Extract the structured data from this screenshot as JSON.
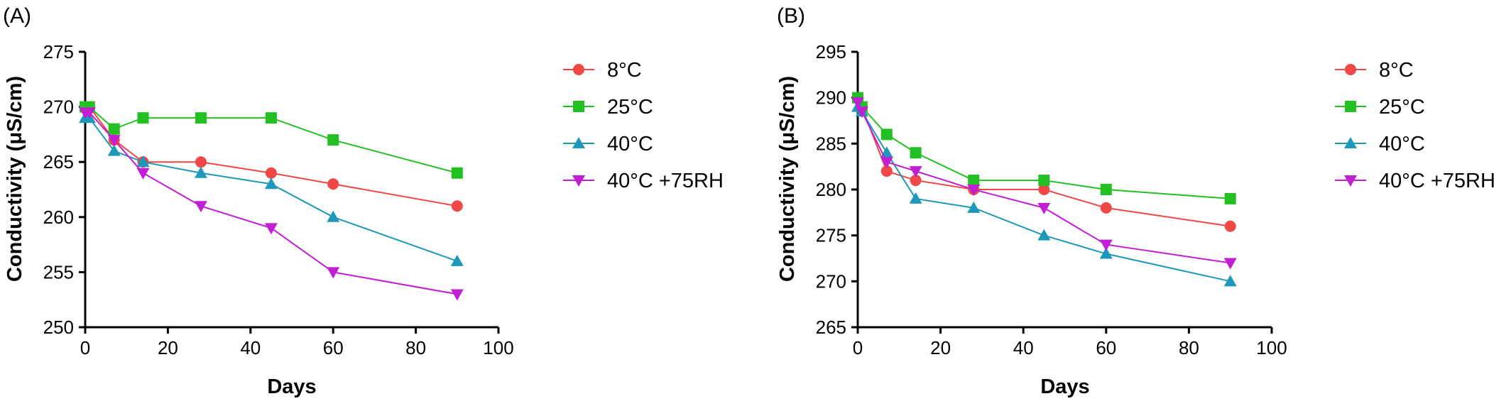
{
  "chart_data": [
    {
      "panel": "(A)",
      "type": "line",
      "xlabel": "Days",
      "ylabel": "Conductivity (μS/cm)",
      "xlim": [
        0,
        100
      ],
      "ylim": [
        250,
        275
      ],
      "xticks": [
        "0",
        "20",
        "40",
        "60",
        "80",
        "100"
      ],
      "yticks": [
        "250",
        "255",
        "260",
        "265",
        "270",
        "275"
      ],
      "legend_position": "right",
      "grid": false,
      "series": [
        {
          "name": "8°C",
          "color": "#f04747",
          "marker": "circle",
          "x": [
            0,
            1,
            7,
            14,
            28,
            45,
            60,
            90
          ],
          "y": [
            270,
            270,
            267,
            265,
            265,
            264,
            263,
            261
          ]
        },
        {
          "name": "25°C",
          "color": "#22c022",
          "marker": "square",
          "x": [
            0,
            1,
            7,
            14,
            28,
            45,
            60,
            90
          ],
          "y": [
            270,
            270,
            268,
            269,
            269,
            269,
            267,
            264
          ]
        },
        {
          "name": "40°C",
          "color": "#1e98b8",
          "marker": "triangle-up",
          "x": [
            0,
            1,
            7,
            14,
            28,
            45,
            60,
            90
          ],
          "y": [
            269,
            269,
            266,
            265,
            264,
            263,
            260,
            256
          ]
        },
        {
          "name": "40°C +75RH",
          "color": "#c21ed4",
          "marker": "triangle-down",
          "x": [
            0,
            1,
            7,
            14,
            28,
            45,
            60,
            90
          ],
          "y": [
            269.5,
            269.5,
            267,
            264,
            261,
            259,
            255,
            253
          ]
        }
      ]
    },
    {
      "panel": "(B)",
      "type": "line",
      "xlabel": "Days",
      "ylabel": "Conductivity (μS/cm)",
      "xlim": [
        0,
        100
      ],
      "ylim": [
        265,
        295
      ],
      "xticks": [
        "0",
        "20",
        "40",
        "60",
        "80",
        "100"
      ],
      "yticks": [
        "265",
        "270",
        "275",
        "280",
        "285",
        "290",
        "295"
      ],
      "legend_position": "right",
      "grid": false,
      "series": [
        {
          "name": "8°C",
          "color": "#f04747",
          "marker": "circle",
          "x": [
            0,
            1,
            7,
            14,
            28,
            45,
            60,
            90
          ],
          "y": [
            290,
            289,
            282,
            281,
            280,
            280,
            278,
            276
          ]
        },
        {
          "name": "25°C",
          "color": "#22c022",
          "marker": "square",
          "x": [
            0,
            1,
            7,
            14,
            28,
            45,
            60,
            90
          ],
          "y": [
            290,
            289,
            286,
            284,
            281,
            281,
            280,
            279
          ]
        },
        {
          "name": "40°C",
          "color": "#1e98b8",
          "marker": "triangle-up",
          "x": [
            0,
            1,
            7,
            14,
            28,
            45,
            60,
            90
          ],
          "y": [
            289,
            288.5,
            284,
            279,
            278,
            275,
            273,
            270
          ]
        },
        {
          "name": "40°C +75RH",
          "color": "#c21ed4",
          "marker": "triangle-down",
          "x": [
            0,
            1,
            7,
            14,
            28,
            45,
            60,
            90
          ],
          "y": [
            289.5,
            288.5,
            283,
            282,
            280,
            278,
            274,
            272
          ]
        }
      ]
    }
  ]
}
